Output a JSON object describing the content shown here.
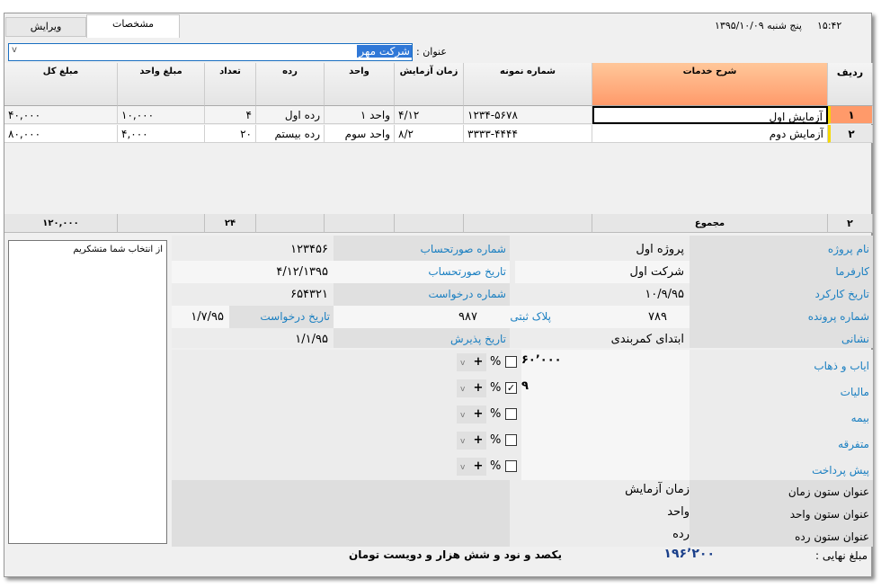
{
  "header": {
    "time": "۱۵:۴۲",
    "date": "پنج شنبه ۱۳۹۵/۱۰/۰۹"
  },
  "tabs": [
    {
      "label": "ویرایش",
      "active": false
    },
    {
      "label": "مشخصات",
      "active": true
    }
  ],
  "title_field": {
    "label": "عنوان :",
    "value": "شرکت مهر"
  },
  "grid": {
    "columns": [
      "ردیف",
      "شرح خدمات",
      "شماره نمونه",
      "زمان آزمایش",
      "واحد",
      "رده",
      "تعداد",
      "مبلغ واحد",
      "مبلغ کل"
    ],
    "rows": [
      {
        "row": "۱",
        "desc": "آزمایش اول",
        "sample": "۱۲۳۴-۵۶۷۸",
        "time": "۴/۱۲",
        "unit": "واحد ۱",
        "grade": "رده اول",
        "qty": "۴",
        "unit_price": "۱۰,۰۰۰",
        "total": "۴۰,۰۰۰"
      },
      {
        "row": "۲",
        "desc": "آزمایش دوم",
        "sample": "۳۳۳۳-۴۴۴۴",
        "time": "۸/۲",
        "unit": "واحد سوم",
        "grade": "رده بیستم",
        "qty": "۲۰",
        "unit_price": "۴,۰۰۰",
        "total": "۸۰,۰۰۰"
      }
    ],
    "footer": {
      "count": "۲",
      "label": "مجموع",
      "qty": "۲۴",
      "total": "۱۲۰,۰۰۰"
    },
    "accent": "#ff9a6a"
  },
  "notes": "از انتخاب شما متشکریم",
  "form": {
    "project_name": {
      "label": "نام پروژه",
      "value": "پروژه اول"
    },
    "employer": {
      "label": "کارفرما",
      "value": "شرکت اول"
    },
    "work_date": {
      "label": "تاریخ کارکرد",
      "value": "۱۰/۹/۹۵"
    },
    "file_no": {
      "label": "شماره پرونده",
      "value": "۷۸۹"
    },
    "address": {
      "label": "نشانی",
      "value": "ابتدای کمربندی"
    },
    "invoice_no": {
      "label": "شماره صورتحساب",
      "value": "۱۲۳۴۵۶"
    },
    "invoice_date": {
      "label": "تاریخ صورتحساب",
      "value": "۴/۱۲/۱۳۹۵"
    },
    "request_no": {
      "label": "شماره درخواست",
      "value": "۶۵۴۳۲۱"
    },
    "plate": {
      "label": "پلاک ثبتی",
      "value": "۹۸۷"
    },
    "request_date": {
      "label": "تاریخ درخواست",
      "value": "۱/۷/۹۵"
    },
    "accept_date": {
      "label": "تاریخ پذیرش",
      "value": "۱/۱/۹۵"
    }
  },
  "charges": [
    {
      "label": "ایاب و ذهاب",
      "value": "۶۰٬۰۰۰",
      "checked": false
    },
    {
      "label": "مالیات",
      "value": "۹",
      "checked": true
    },
    {
      "label": "بیمه",
      "value": "",
      "checked": false
    },
    {
      "label": "متفرقه",
      "value": "",
      "checked": false
    },
    {
      "label": "پیش پرداخت",
      "value": "",
      "checked": false
    }
  ],
  "charge_controls": {
    "percent": "%",
    "plus": "+"
  },
  "column_titles": [
    {
      "label": "عنوان ستون زمان",
      "value": "زمان آزمایش"
    },
    {
      "label": "عنوان ستون واحد",
      "value": "واحد"
    },
    {
      "label": "عنوان ستون رده",
      "value": "رده"
    }
  ],
  "final": {
    "label": "مبلغ نهایی :",
    "amount": "۱۹۶٬۲۰۰",
    "words": "یکصد و نود و شش هزار و دویست تومان"
  }
}
